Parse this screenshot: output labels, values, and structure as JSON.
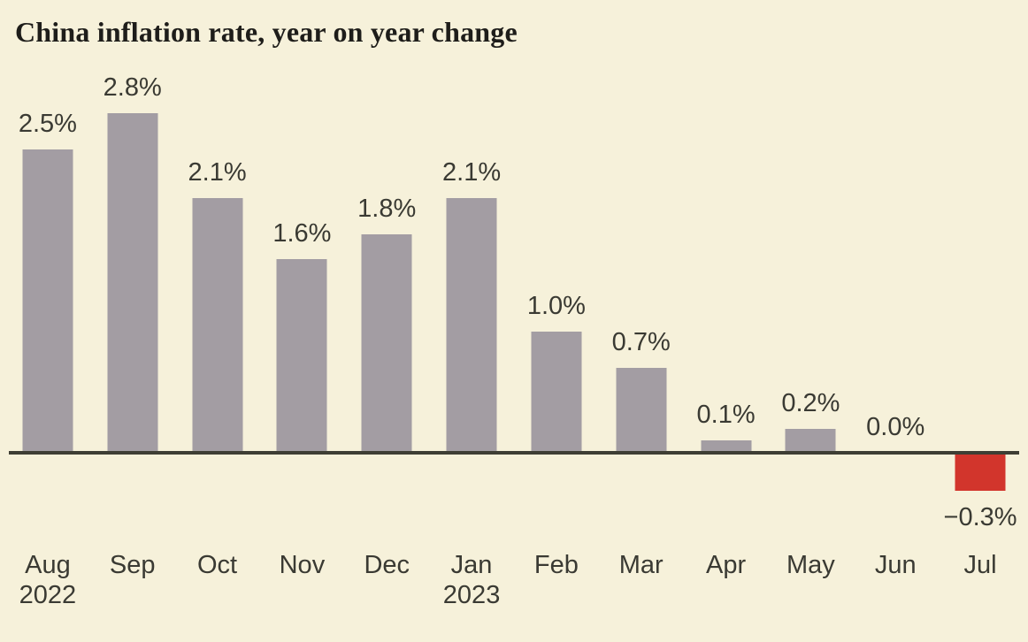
{
  "title": "China inflation rate, year on year change",
  "colors": {
    "background": "#f6f1da",
    "bar_positive": "#a39da3",
    "bar_negative": "#d2352c",
    "axis": "#3e3e34",
    "title_text": "#1e1d1a",
    "label_text": "#3a3a33"
  },
  "chart_data": {
    "type": "bar",
    "title": "China inflation rate, year on year change",
    "unit": "%",
    "grid": false,
    "legend": false,
    "ylim": [
      -0.5,
      3.0
    ],
    "categories": [
      {
        "month": "Aug",
        "year": "2022"
      },
      {
        "month": "Sep",
        "year": ""
      },
      {
        "month": "Oct",
        "year": ""
      },
      {
        "month": "Nov",
        "year": ""
      },
      {
        "month": "Dec",
        "year": ""
      },
      {
        "month": "Jan",
        "year": "2023"
      },
      {
        "month": "Feb",
        "year": ""
      },
      {
        "month": "Mar",
        "year": ""
      },
      {
        "month": "Apr",
        "year": ""
      },
      {
        "month": "May",
        "year": ""
      },
      {
        "month": "Jun",
        "year": ""
      },
      {
        "month": "Jul",
        "year": ""
      }
    ],
    "values": [
      2.5,
      2.8,
      2.1,
      1.6,
      1.8,
      2.1,
      1.0,
      0.7,
      0.1,
      0.2,
      0.0,
      -0.3
    ],
    "data_labels": [
      "2.5%",
      "2.8%",
      "2.1%",
      "1.6%",
      "1.8%",
      "2.1%",
      "1.0%",
      "0.7%",
      "0.1%",
      "0.2%",
      "0.0%",
      "−0.3%"
    ]
  }
}
